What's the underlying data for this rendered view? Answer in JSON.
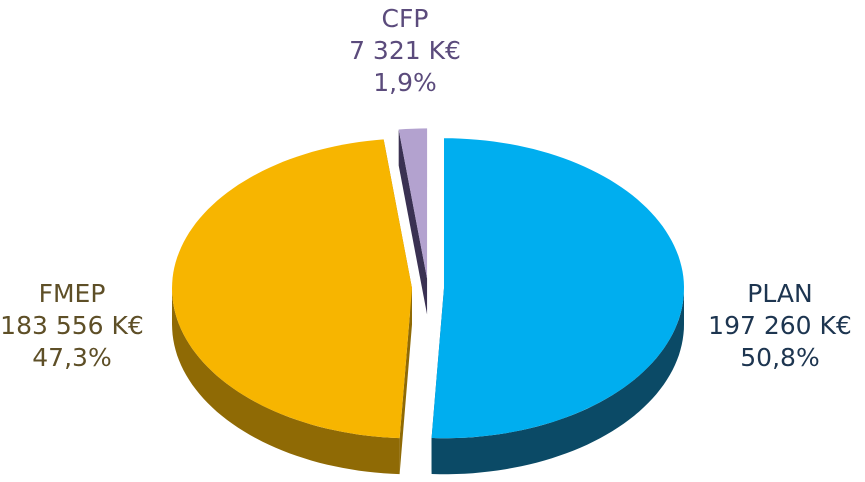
{
  "chart_data": {
    "type": "pie",
    "categories": [
      "PLAN",
      "FMEP",
      "CFP"
    ],
    "values": [
      197260,
      183556,
      7321
    ],
    "value_labels": [
      "197 260 K€",
      "183 556 K€",
      "7 321 K€"
    ],
    "percentages": [
      50.8,
      47.3,
      1.9
    ],
    "percentage_labels": [
      "50,8%",
      "47,3%",
      "1,9%"
    ],
    "colors": [
      "#00aeef",
      "#f7b500",
      "#b3a2cf"
    ],
    "side_colors": [
      "#0b4a66",
      "#8f6a05",
      "#3a3152"
    ],
    "label_colors": [
      "#1d3550",
      "#5e4f27",
      "#5b4b7c"
    ]
  }
}
